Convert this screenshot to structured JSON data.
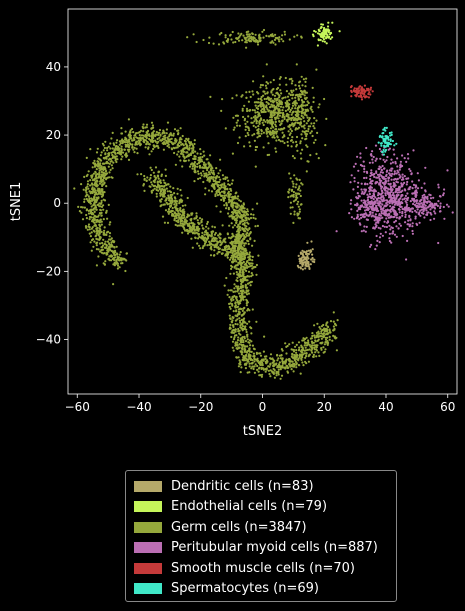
{
  "chart_data": {
    "type": "scatter",
    "title": "",
    "xlabel": "tSNE2",
    "ylabel": "tSNE1",
    "xlim": [
      -63,
      63
    ],
    "ylim": [
      -56,
      57
    ],
    "xticks": [
      -60,
      -40,
      -20,
      0,
      20,
      40,
      60
    ],
    "yticks": [
      -40,
      -20,
      0,
      20,
      40
    ],
    "xtick_labels": [
      "−60",
      "−40",
      "−20",
      "0",
      "20",
      "40",
      "60"
    ],
    "ytick_labels": [
      "−40",
      "−20",
      "0",
      "20",
      "40"
    ],
    "grid": false,
    "legend_position": "below",
    "series": [
      {
        "name": "Dendritic cells (n=83)",
        "color": "#b5a96a",
        "n": 83,
        "regions": [
          {
            "cx": 14,
            "cy": -16.5,
            "sx": 1.2,
            "sy": 2.0,
            "n": 83
          }
        ]
      },
      {
        "name": "Endothelial cells (n=79)",
        "color": "#c5f55a",
        "n": 79,
        "regions": [
          {
            "cx": 20,
            "cy": 49.5,
            "sx": 1.3,
            "sy": 1.2,
            "n": 79
          }
        ]
      },
      {
        "name": "Germ cells (n=3847)",
        "color": "#95a83c",
        "n": 3847,
        "arms": [
          [
            [
              -46,
              -18
            ],
            [
              -53,
              -10
            ],
            [
              -55,
              0
            ],
            [
              -53,
              8
            ],
            [
              -50,
              14
            ],
            [
              -43,
              18
            ],
            [
              -36,
              20
            ],
            [
              -30,
              19
            ],
            [
              -25,
              16
            ],
            [
              -20,
              11
            ],
            [
              -15,
              6
            ],
            [
              -11,
              2
            ],
            [
              -7,
              -4
            ]
          ],
          [
            [
              -36,
              8
            ],
            [
              -31,
              2
            ],
            [
              -26,
              -4
            ],
            [
              -20,
              -9
            ],
            [
              -14,
              -12
            ],
            [
              -9,
              -14
            ],
            [
              -6,
              -18
            ],
            [
              -7,
              -24
            ],
            [
              -8,
              -32
            ],
            [
              -7,
              -40
            ],
            [
              -4,
              -46
            ],
            [
              3,
              -48
            ],
            [
              10,
              -46
            ],
            [
              16,
              -42
            ],
            [
              21,
              -38
            ],
            [
              23,
              -36
            ]
          ],
          [
            [
              -6,
              -2
            ],
            [
              -7,
              -10
            ],
            [
              -7,
              -18
            ]
          ]
        ],
        "regions": [
          {
            "cx": 4,
            "cy": 26,
            "sx": 6,
            "sy": 4.5,
            "n": 520
          },
          {
            "cx": 13,
            "cy": 25,
            "sx": 2.2,
            "sy": 7,
            "n": 130
          },
          {
            "cx": -4,
            "cy": 48.5,
            "sx": 7,
            "sy": 1.0,
            "n": 120
          },
          {
            "cx": 10.5,
            "cy": 2,
            "sx": 1.1,
            "sy": 3.5,
            "n": 60
          }
        ]
      },
      {
        "name": "Peritubular myoid cells (n=887)",
        "color": "#bb6fb4",
        "n": 887,
        "regions": [
          {
            "cx": 41,
            "cy": 2,
            "sx": 5,
            "sy": 6,
            "n": 640
          },
          {
            "cx": 53,
            "cy": 0,
            "sx": 3,
            "sy": 2,
            "n": 140
          },
          {
            "cx": 34,
            "cy": -2,
            "sx": 2.5,
            "sy": 2,
            "n": 107
          }
        ]
      },
      {
        "name": "Smooth muscle cells (n=70)",
        "color": "#c53a3a",
        "n": 70,
        "regions": [
          {
            "cx": 32,
            "cy": 33,
            "sx": 1.8,
            "sy": 0.9,
            "n": 70
          }
        ]
      },
      {
        "name": "Spermatocytes (n=69)",
        "color": "#40e8c8",
        "n": 69,
        "regions": [
          {
            "cx": 40,
            "cy": 18,
            "sx": 1.2,
            "sy": 1.6,
            "n": 69
          }
        ]
      }
    ]
  }
}
